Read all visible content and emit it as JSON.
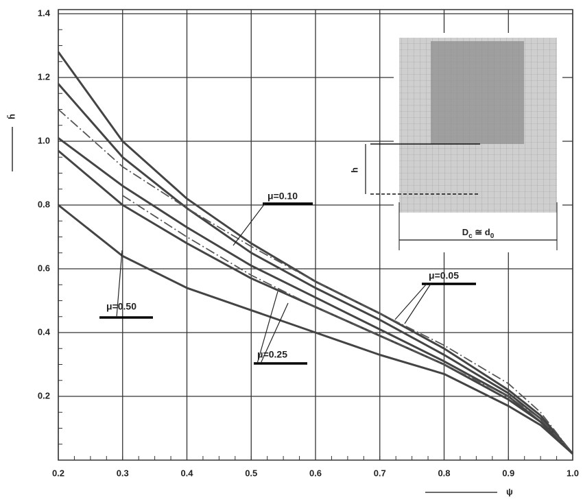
{
  "chart_data": {
    "type": "line",
    "x_label": "ψ",
    "y_label": "h̄",
    "x": [
      0.2,
      0.3,
      0.4,
      0.5,
      0.6,
      0.7,
      0.8,
      0.9,
      0.95,
      1.0
    ],
    "series": [
      {
        "color": "#444444",
        "style": "solid",
        "values": [
          1.28,
          1.0,
          0.82,
          0.68,
          0.56,
          0.46,
          0.35,
          0.22,
          0.14,
          0.02
        ]
      },
      {
        "color": "#444444",
        "style": "solid",
        "values": [
          1.18,
          0.95,
          0.79,
          0.65,
          0.54,
          0.44,
          0.33,
          0.21,
          0.13,
          0.02
        ]
      },
      {
        "color": "#555555",
        "style": "dashdot",
        "values": [
          1.1,
          0.92,
          0.79,
          0.67,
          0.56,
          0.46,
          0.36,
          0.24,
          0.15,
          0.02
        ]
      },
      {
        "color": "#444444",
        "style": "solid",
        "values": [
          1.01,
          0.86,
          0.73,
          0.61,
          0.51,
          0.41,
          0.31,
          0.2,
          0.12,
          0.02
        ]
      },
      {
        "color": "#444444",
        "style": "solid",
        "values": [
          0.97,
          0.8,
          0.68,
          0.57,
          0.48,
          0.39,
          0.3,
          0.19,
          0.12,
          0.02
        ]
      },
      {
        "color": "#555555",
        "style": "dashdot",
        "values": [
          null,
          0.83,
          0.7,
          0.58,
          0.48,
          0.39,
          0.3,
          0.2,
          0.13,
          0.02
        ]
      },
      {
        "color": "#444444",
        "style": "solid",
        "values": [
          0.8,
          0.64,
          0.54,
          0.47,
          0.4,
          0.33,
          0.27,
          0.17,
          0.11,
          0.02
        ]
      }
    ],
    "annotations": [
      "μ=0.10",
      "μ=0.05",
      "μ=0.25",
      "μ=0.50"
    ],
    "inset_height_label": "h",
    "inset_diameter_label": [
      "D",
      "c",
      " ≅ d",
      "0"
    ],
    "xlim": [
      0.2,
      1.0
    ],
    "ylim": [
      0,
      1.4
    ],
    "xticks": [
      0.2,
      0.3,
      0.4,
      0.5,
      0.6,
      0.7,
      0.8,
      0.9,
      {
        "value": 1.0,
        "label": "1.0"
      }
    ],
    "yticks": [
      0.2,
      0.4,
      0.6,
      0.8,
      {
        "value": 1.0,
        "label": "1.0"
      },
      1.2,
      1.4
    ],
    "grid": true
  }
}
